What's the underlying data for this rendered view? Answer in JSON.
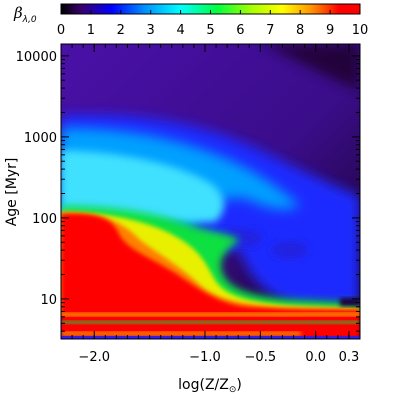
{
  "chart_data": {
    "type": "heatmap",
    "title": "",
    "xlabel": "log(Z/Z",
    "xlabel_sub": "⊙",
    "xlabel_close": ")",
    "ylabel": "Age [Myr]",
    "xlim": [
      -2.3,
      0.4
    ],
    "ylim": [
      3.2,
      14000
    ],
    "y_scale": "log",
    "x_ticks": [
      {
        "value": -2.0,
        "label": "-2.0"
      },
      {
        "value": -1.0,
        "label": "-1.0"
      },
      {
        "value": -0.5,
        "label": "-0.5"
      },
      {
        "value": 0.0,
        "label": "0.0"
      },
      {
        "value": 0.3,
        "label": "0.3"
      }
    ],
    "y_ticks": [
      {
        "value": 10,
        "label": "10"
      },
      {
        "value": 100,
        "label": "100"
      },
      {
        "value": 1000,
        "label": "1000"
      },
      {
        "value": 10000,
        "label": "10000"
      }
    ],
    "colorbar": {
      "label_main": "β",
      "label_sub": "λ,0",
      "range": [
        0,
        10
      ],
      "ticks": [
        "0",
        "1",
        "2",
        "3",
        "4",
        "5",
        "6",
        "7",
        "8",
        "9",
        "10"
      ],
      "colormap": [
        "#000000",
        "#3a0070",
        "#0000ff",
        "#0090ff",
        "#00ffff",
        "#00ff40",
        "#aaff00",
        "#ffff00",
        "#ff9000",
        "#ff0000"
      ]
    },
    "grid": false,
    "regions": [
      {
        "label": "red β≥10",
        "age_range": "3.5–110 Myr at low Z, narrowing to 5–7 Myr at high Z"
      },
      {
        "label": "green 5–7",
        "age_range": "~110–130 Myr at low Z, curving down to ~10 Myr at log Z ≈ -0.6"
      },
      {
        "label": "cyan 3–4",
        "age_range": "~200–1100 Myr at low Z, thinning toward high Z"
      },
      {
        "label": "blue 2",
        "age_range": "~1000–1500 Myr and ~10–100 Myr region at high Z"
      },
      {
        "label": "purple 1",
        "age_range": "> 2000 Myr"
      }
    ]
  }
}
